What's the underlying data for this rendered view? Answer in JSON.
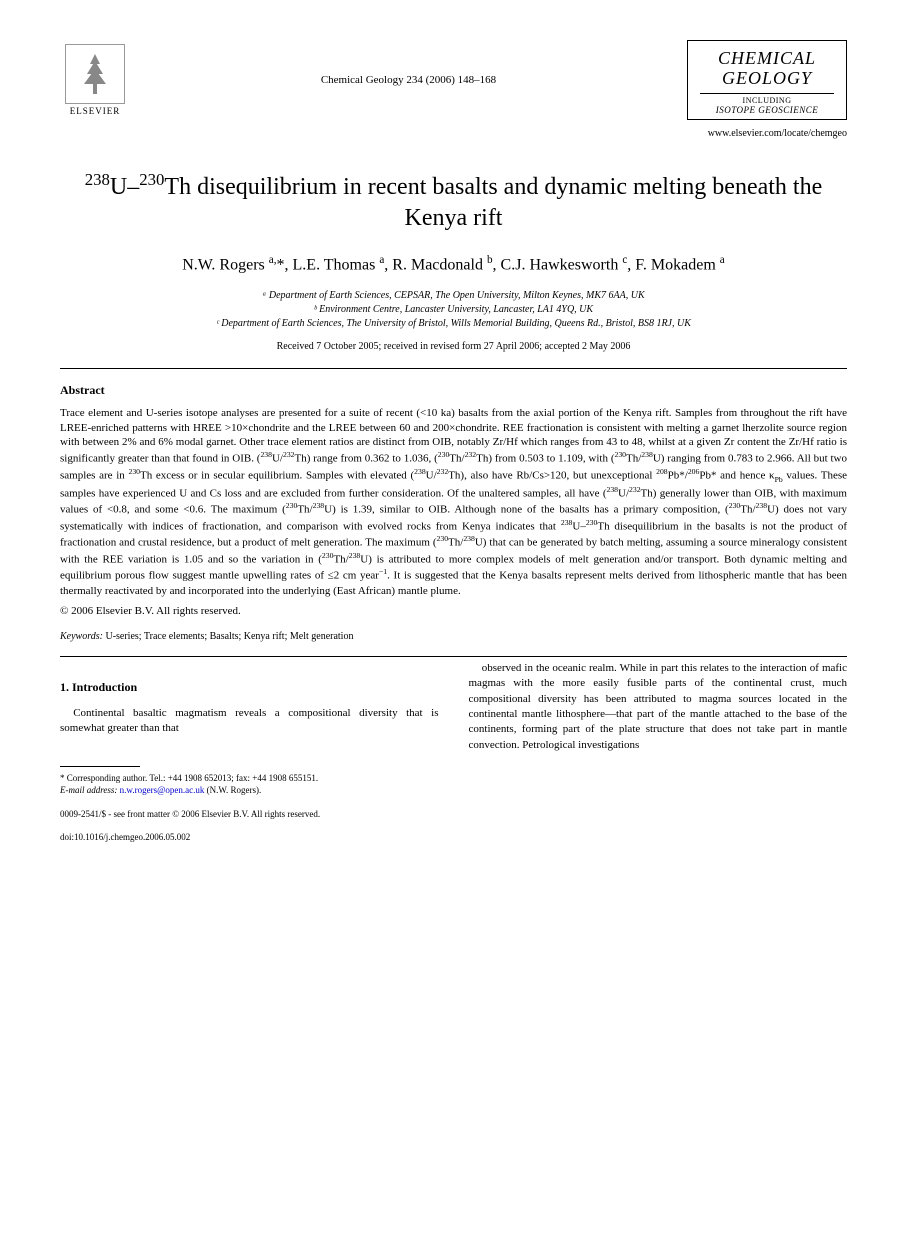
{
  "header": {
    "publisher": "ELSEVIER",
    "journal_ref": "Chemical Geology 234 (2006) 148–168",
    "journal_name_line1": "CHEMICAL",
    "journal_name_line2": "GEOLOGY",
    "journal_sub": "INCLUDING",
    "journal_isotope": "ISOTOPE GEOSCIENCE",
    "url": "www.elsevier.com/locate/chemgeo"
  },
  "title_html": "<sup>238</sup>U–<sup>230</sup>Th disequilibrium in recent basalts and dynamic melting beneath the Kenya rift",
  "authors_html": "N.W. Rogers <sup>a,</sup>*, L.E. Thomas <sup>a</sup>, R. Macdonald <sup>b</sup>, C.J. Hawkesworth <sup>c</sup>, F. Mokadem <sup>a</sup>",
  "affiliations": [
    "ᵃ Department of Earth Sciences, CEPSAR, The Open University, Milton Keynes, MK7 6AA, UK",
    "ᵇ Environment Centre, Lancaster University, Lancaster, LA1 4YQ, UK",
    "ᶜ Department of Earth Sciences, The University of Bristol, Wills Memorial Building, Queens Rd., Bristol, BS8 1RJ, UK"
  ],
  "dates": "Received 7 October 2005; received in revised form 27 April 2006; accepted 2 May 2006",
  "abstract": {
    "heading": "Abstract",
    "body_html": "Trace element and U-series isotope analyses are presented for a suite of recent (<10 ka) basalts from the axial portion of the Kenya rift. Samples from throughout the rift have LREE-enriched patterns with HREE >10×chondrite and the LREE between 60 and 200×chondrite. REE fractionation is consistent with melting a garnet lherzolite source region with between 2% and 6% modal garnet. Other trace element ratios are distinct from OIB, notably Zr/Hf which ranges from 43 to 48, whilst at a given Zr content the Zr/Hf ratio is significantly greater than that found in OIB. (<sup>238</sup>U/<sup>232</sup>Th) range from 0.362 to 1.036, (<sup>230</sup>Th/<sup>232</sup>Th) from 0.503 to 1.109, with (<sup>230</sup>Th/<sup>238</sup>U) ranging from 0.783 to 2.966. All but two samples are in <sup>230</sup>Th excess or in secular equilibrium. Samples with elevated (<sup>238</sup>U/<sup>232</sup>Th), also have Rb/Cs>120, but unexceptional <sup>208</sup>Pb*/<sup>206</sup>Pb* and hence κ<sub>Pb</sub> values. These samples have experienced U and Cs loss and are excluded from further consideration. Of the unaltered samples, all have (<sup>238</sup>U/<sup>232</sup>Th) generally lower than OIB, with maximum values of <0.8, and some <0.6. The maximum (<sup>230</sup>Th/<sup>238</sup>U) is 1.39, similar to OIB. Although none of the basalts has a primary composition, (<sup>230</sup>Th/<sup>238</sup>U) does not vary systematically with indices of fractionation, and comparison with evolved rocks from Kenya indicates that <sup>238</sup>U–<sup>230</sup>Th disequilibrium in the basalts is not the product of fractionation and crustal residence, but a product of melt generation. The maximum (<sup>230</sup>Th/<sup>238</sup>U) that can be generated by batch melting, assuming a source mineralogy consistent with the REE variation is 1.05 and so the variation in (<sup>230</sup>Th/<sup>238</sup>U) is attributed to more complex models of melt generation and/or transport. Both dynamic melting and equilibrium porous flow suggest mantle upwelling rates of ≤2 cm year<sup>−1</sup>. It is suggested that the Kenya basalts represent melts derived from lithospheric mantle that has been thermally reactivated by and incorporated into the underlying (East African) mantle plume.",
    "copyright": "© 2006 Elsevier B.V. All rights reserved."
  },
  "keywords": {
    "label": "Keywords:",
    "text": "U-series; Trace elements; Basalts; Kenya rift; Melt generation"
  },
  "section1": {
    "heading": "1. Introduction",
    "para1": "Continental basaltic magmatism reveals a compositional diversity that is somewhat greater than that",
    "para2": "observed in the oceanic realm. While in part this relates to the interaction of mafic magmas with the more easily fusible parts of the continental crust, much compositional diversity has been attributed to magma sources located in the continental mantle lithosphere—that part of the mantle attached to the base of the continents, forming part of the plate structure that does not take part in mantle convection. Petrological investigations"
  },
  "footnote": {
    "corr": "* Corresponding author. Tel.: +44 1908 652013; fax: +44 1908 655151.",
    "email_label": "E-mail address:",
    "email": "n.w.rogers@open.ac.uk",
    "email_name": "(N.W. Rogers)."
  },
  "footer": {
    "line1": "0009-2541/$ - see front matter © 2006 Elsevier B.V. All rights reserved.",
    "line2": "doi:10.1016/j.chemgeo.2006.05.002"
  }
}
